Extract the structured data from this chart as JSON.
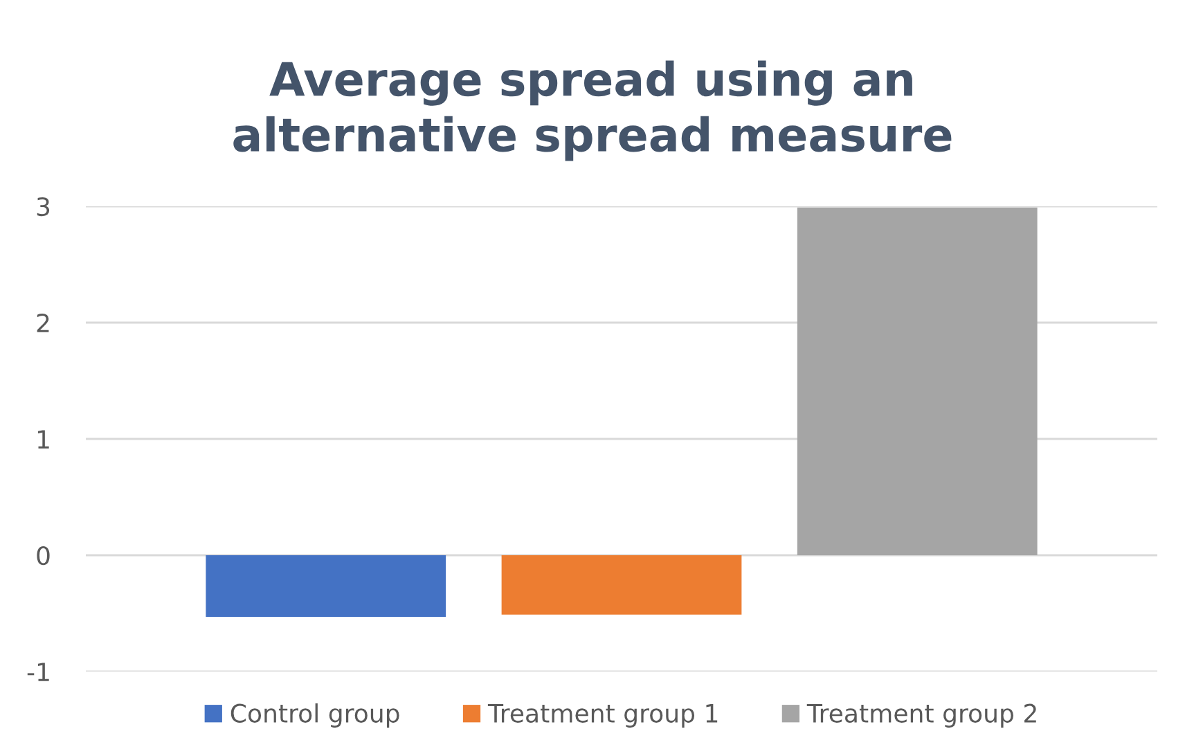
{
  "chart_data": {
    "type": "bar",
    "title": "Average spread using an\nalternative spread measure",
    "categories": [
      null
    ],
    "series": [
      {
        "name": "Control group",
        "color": "#4472c4",
        "values": [
          -0.53
        ]
      },
      {
        "name": "Treatment group 1",
        "color": "#ed7d31",
        "values": [
          -0.51
        ]
      },
      {
        "name": "Treatment group 2",
        "color": "#a5a5a5",
        "values": [
          2.99
        ]
      }
    ],
    "ylim": [
      -1,
      3
    ],
    "yticks": [
      -1,
      0,
      1,
      2,
      3
    ],
    "grid": "y",
    "legend": "bottom"
  }
}
